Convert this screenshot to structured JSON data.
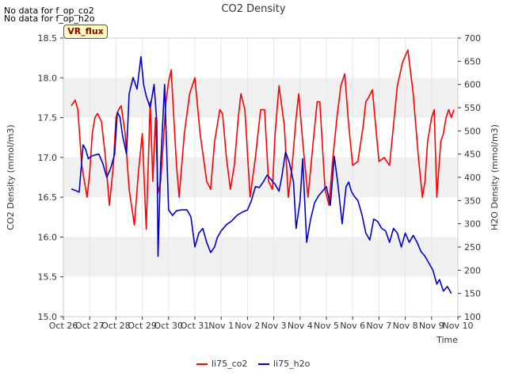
{
  "header": {
    "title": "CO2 Density",
    "nodata_lines": [
      "No data for f_op_co2",
      "No data for f_op_h2o"
    ],
    "badge": "VR_flux"
  },
  "legend": {
    "items": [
      "li75_co2",
      "li75_h2o"
    ]
  },
  "colors": {
    "co2": "#ff0000",
    "h2o": "#0000cc",
    "band": "#f0f0f0",
    "grid": "#ffffff"
  },
  "chart_data": {
    "type": "line",
    "title": "CO2 Density",
    "xlabel": "Time",
    "ylabel": "CO2 Density (mmol/m3)",
    "y2label": "H2O Density (mmol/m3)",
    "x_ticks": [
      "Oct 26",
      "Oct 27",
      "Oct 28",
      "Oct 29",
      "Oct 30",
      "Oct 31",
      "Nov 1",
      "Nov 2",
      "Nov 3",
      "Nov 4",
      "Nov 5",
      "Nov 6",
      "Nov 7",
      "Nov 8",
      "Nov 9",
      "Nov 10"
    ],
    "y_ticks": [
      "15.0",
      "15.5",
      "16.0",
      "16.5",
      "17.0",
      "17.5",
      "18.0",
      "18.5"
    ],
    "y2_ticks": [
      "100",
      "150",
      "200",
      "250",
      "300",
      "350",
      "400",
      "450",
      "500",
      "550",
      "600",
      "650",
      "700"
    ],
    "ylim": [
      15.0,
      18.5
    ],
    "y2lim": [
      100,
      700
    ],
    "xlim_days": [
      0,
      15
    ],
    "grid": "horizontal bands",
    "legend_position": "bottom",
    "series": [
      {
        "name": "li75_co2",
        "axis": "left",
        "x": [
          0.3,
          0.45,
          0.55,
          0.7,
          0.9,
          1.0,
          1.1,
          1.2,
          1.3,
          1.45,
          1.6,
          1.75,
          1.9,
          2.0,
          2.1,
          2.2,
          2.35,
          2.5,
          2.7,
          2.85,
          3.0,
          3.15,
          3.3,
          3.4,
          3.5,
          3.6,
          3.7,
          3.8,
          3.9,
          4.0,
          4.1,
          4.2,
          4.3,
          4.4,
          4.6,
          4.8,
          5.0,
          5.2,
          5.45,
          5.6,
          5.75,
          5.95,
          6.05,
          6.2,
          6.35,
          6.5,
          6.65,
          6.75,
          6.9,
          7.1,
          7.3,
          7.5,
          7.65,
          7.8,
          7.95,
          8.05,
          8.2,
          8.4,
          8.55,
          8.7,
          8.85,
          8.95,
          9.1,
          9.3,
          9.5,
          9.65,
          9.75,
          9.95,
          10.1,
          10.25,
          10.4,
          10.55,
          10.7,
          10.85,
          11.0,
          11.2,
          11.4,
          11.5,
          11.6,
          11.75,
          11.9,
          12.0,
          12.2,
          12.4,
          12.55,
          12.7,
          12.9,
          13.1,
          13.3,
          13.5,
          13.65,
          13.75,
          13.85,
          14.0,
          14.1,
          14.2,
          14.35,
          14.45,
          14.55,
          14.65,
          14.75,
          14.85
        ],
        "y": [
          17.65,
          17.72,
          17.6,
          16.9,
          16.5,
          16.8,
          17.3,
          17.5,
          17.55,
          17.45,
          17.0,
          16.4,
          16.9,
          17.5,
          17.6,
          17.65,
          17.3,
          16.6,
          16.15,
          16.8,
          17.3,
          16.1,
          17.7,
          16.7,
          17.5,
          16.55,
          16.7,
          17.2,
          17.7,
          17.95,
          18.1,
          17.5,
          16.9,
          16.5,
          17.3,
          17.8,
          18.0,
          17.3,
          16.7,
          16.6,
          17.2,
          17.6,
          17.55,
          17.0,
          16.6,
          16.9,
          17.5,
          17.8,
          17.6,
          16.5,
          17.0,
          17.6,
          17.6,
          16.7,
          16.6,
          17.3,
          17.9,
          17.4,
          16.5,
          16.9,
          17.5,
          17.8,
          17.2,
          16.5,
          17.2,
          17.7,
          17.7,
          16.6,
          16.4,
          17.0,
          17.5,
          17.9,
          18.05,
          17.4,
          16.9,
          16.95,
          17.4,
          17.7,
          17.75,
          17.85,
          17.3,
          16.95,
          17.0,
          16.9,
          17.4,
          17.9,
          18.2,
          18.35,
          17.8,
          17.0,
          16.5,
          16.7,
          17.2,
          17.5,
          17.6,
          16.5,
          17.2,
          17.3,
          17.5,
          17.6,
          17.5,
          17.6
        ]
      },
      {
        "name": "li75_h2o",
        "axis": "right",
        "x": [
          0.3,
          0.45,
          0.6,
          0.75,
          0.85,
          0.95,
          1.05,
          1.2,
          1.35,
          1.5,
          1.65,
          1.8,
          1.95,
          2.05,
          2.15,
          2.25,
          2.4,
          2.5,
          2.65,
          2.8,
          2.95,
          3.05,
          3.15,
          3.3,
          3.45,
          3.55,
          3.6,
          3.7,
          3.85,
          4.0,
          4.15,
          4.3,
          4.5,
          4.7,
          4.85,
          5.0,
          5.15,
          5.3,
          5.45,
          5.6,
          5.75,
          5.85,
          6.0,
          6.2,
          6.4,
          6.6,
          6.8,
          7.0,
          7.15,
          7.3,
          7.45,
          7.6,
          7.75,
          7.9,
          8.05,
          8.2,
          8.3,
          8.45,
          8.6,
          8.75,
          8.85,
          9.0,
          9.1,
          9.25,
          9.4,
          9.55,
          9.7,
          9.85,
          10.0,
          10.15,
          10.3,
          10.45,
          10.6,
          10.75,
          10.85,
          10.95,
          11.05,
          11.2,
          11.35,
          11.5,
          11.65,
          11.8,
          11.95,
          12.1,
          12.25,
          12.4,
          12.55,
          12.7,
          12.85,
          13.0,
          13.15,
          13.3,
          13.45,
          13.6,
          13.75,
          13.9,
          14.05,
          14.2,
          14.3,
          14.45,
          14.6,
          14.75
        ],
        "y": [
          375,
          372,
          368,
          470,
          460,
          440,
          445,
          448,
          450,
          430,
          400,
          420,
          450,
          540,
          530,
          490,
          450,
          580,
          615,
          590,
          660,
          600,
          575,
          550,
          600,
          520,
          230,
          430,
          600,
          330,
          318,
          328,
          330,
          330,
          315,
          250,
          280,
          290,
          260,
          238,
          250,
          270,
          285,
          298,
          306,
          318,
          325,
          330,
          350,
          380,
          378,
          390,
          405,
          395,
          385,
          370,
          400,
          455,
          430,
          390,
          290,
          350,
          440,
          260,
          310,
          345,
          360,
          370,
          380,
          340,
          445,
          380,
          300,
          380,
          390,
          370,
          360,
          350,
          320,
          280,
          265,
          310,
          305,
          290,
          285,
          260,
          290,
          280,
          250,
          280,
          260,
          275,
          260,
          240,
          230,
          215,
          200,
          170,
          180,
          155,
          165,
          150
        ]
      }
    ]
  }
}
